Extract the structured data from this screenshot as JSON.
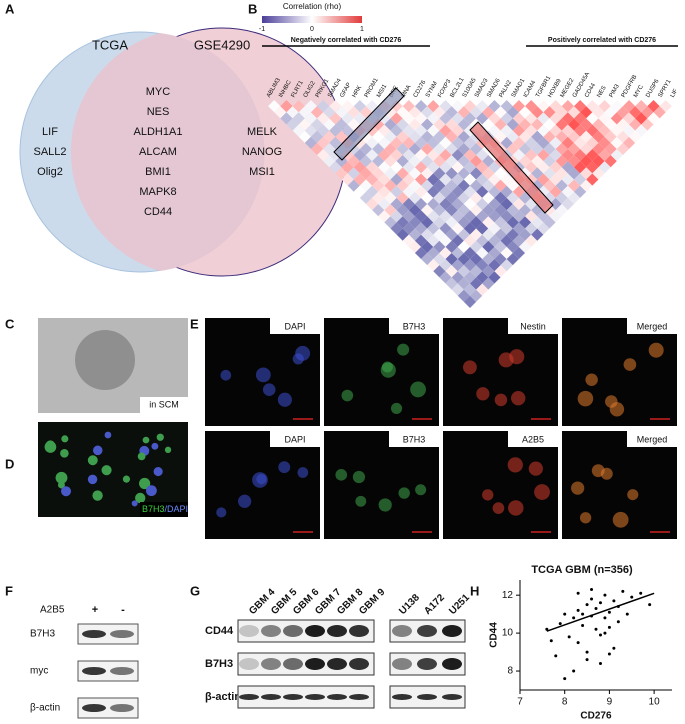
{
  "panels": [
    "A",
    "B",
    "C",
    "D",
    "E",
    "F",
    "G",
    "H"
  ],
  "venn": {
    "left_title": "TCGA",
    "right_title": "GSE4290",
    "left_only": [
      "LIF",
      "SALL2",
      "Olig2"
    ],
    "both": [
      "MYC",
      "NES",
      "ALDH1A1",
      "ALCAM",
      "BMI1",
      "MAPK8",
      "CD44"
    ],
    "right_only": [
      "MELK",
      "NANOG",
      "MSI1"
    ]
  },
  "heatmap": {
    "colorbar_title": "Correlation (rho)",
    "colorbar_ticks": [
      "-1",
      "0",
      "1"
    ],
    "negative_label": "Negatively correlated with CD276",
    "positive_label": "Positively correlated with CD276",
    "genes": [
      "ABLIM3",
      "INHBC",
      "FLRT1",
      "OLIG2",
      "PRKG1",
      "SMAD4",
      "GFAP",
      "HRK",
      "PROM1",
      "MSI1",
      "BRE",
      "MNA",
      "CD276",
      "SYNM",
      "FOXP3",
      "BCL2L1",
      "S100A5",
      "SMAD3",
      "SMAD6",
      "PALN2",
      "SMAD1",
      "ICAM4",
      "TGFBR1",
      "HOXB9",
      "MEGE2",
      "GADD45A",
      "CD44",
      "NES",
      "PIM3",
      "PDGFRB",
      "MYC",
      "DUSP6",
      "SPRY1",
      "LIF"
    ]
  },
  "sphere": {
    "label": "in SCM"
  },
  "stain": {
    "marker": "B7H3",
    "counter": "/DAPI"
  },
  "immunofluorescence": {
    "rows": [
      [
        "DAPI",
        "B7H3",
        "Nestin",
        "Merged"
      ],
      [
        "DAPI",
        "B7H3",
        "A2B5",
        "Merged"
      ]
    ]
  },
  "blot_f": {
    "condition": "A2B5",
    "lanes": [
      "+",
      "-"
    ],
    "rows": [
      "B7H3",
      "myc",
      "β-actin"
    ]
  },
  "blot_g": {
    "lanes": [
      "GBM 4",
      "GBM 5",
      "GBM 6",
      "GBM 7",
      "GBM 8",
      "GBM 9",
      "U138",
      "A172",
      "U251"
    ],
    "rows": [
      "CD44",
      "B7H3",
      "β-actin"
    ]
  },
  "chart_data": {
    "type": "scatter",
    "title": "TCGA GBM (n=356)",
    "x_label": "CD276",
    "y_label": "CD44",
    "xlim": [
      7,
      10.4
    ],
    "ylim": [
      7,
      12.8
    ],
    "xticks": [
      7,
      8,
      9,
      10
    ],
    "yticks": [
      8,
      10,
      12
    ],
    "color": "#000000",
    "x": [
      7.6,
      7.9,
      8.0,
      8.1,
      8.2,
      8.3,
      8.3,
      8.4,
      8.4,
      8.5,
      8.5,
      8.6,
      8.6,
      8.7,
      8.7,
      8.8,
      8.8,
      8.9,
      8.9,
      9.0,
      9.0,
      9.1,
      9.1,
      9.2,
      9.3,
      9.4,
      9.5,
      9.7,
      9.9,
      7.8,
      8.2,
      8.5,
      8.8,
      9.0,
      8.0,
      8.6,
      9.2,
      7.7,
      8.3,
      8.9
    ],
    "values": [
      10.2,
      10.5,
      11.0,
      9.8,
      10.8,
      11.2,
      9.5,
      11.0,
      10.4,
      11.5,
      8.6,
      10.9,
      11.8,
      10.2,
      11.3,
      11.6,
      9.9,
      10.8,
      12.0,
      11.1,
      10.3,
      11.7,
      9.2,
      11.4,
      12.2,
      11.0,
      11.9,
      12.1,
      11.5,
      8.8,
      8.0,
      9.0,
      8.4,
      8.9,
      7.6,
      12.3,
      10.6,
      9.6,
      12.1,
      10.0
    ],
    "fit": {
      "x": [
        7.6,
        10
      ],
      "values": [
        10.1,
        12.1
      ]
    }
  }
}
